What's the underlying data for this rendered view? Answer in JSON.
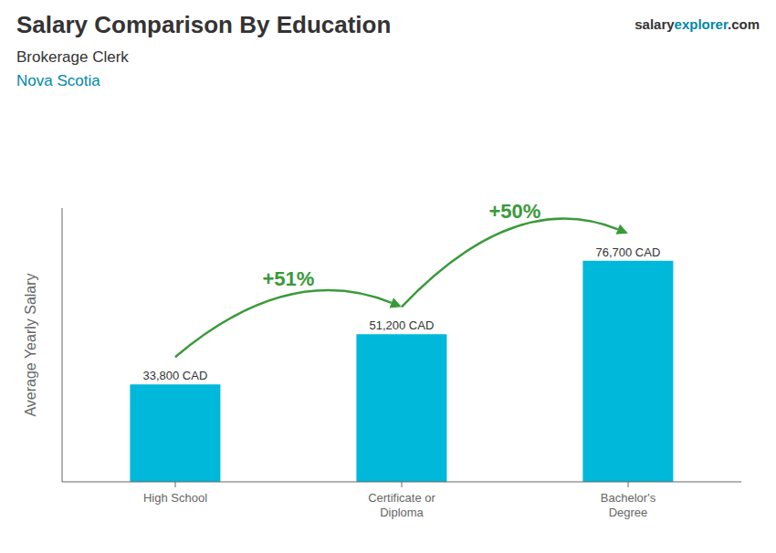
{
  "chart_data": {
    "type": "bar",
    "title": "Salary Comparison By Education",
    "subtitle": [
      "Brokerage Clerk",
      "Nova Scotia"
    ],
    "watermark": [
      "salary",
      "explorer",
      ".com"
    ],
    "ylabel": "Average Yearly Salary",
    "categories": [
      "High School",
      "Certificate or\nDiploma",
      "Bachelor's\nDegree"
    ],
    "values": [
      33800,
      51200,
      76700
    ],
    "value_labels": [
      "33,800 CAD",
      "51,200 CAD",
      "76,700 CAD"
    ],
    "data_labels": true,
    "annotations": [
      "+51%",
      "+50%"
    ],
    "color": "#00b8d9",
    "ylim": [
      0,
      95000
    ],
    "yticks": [],
    "tick_labels": "x",
    "grid": false
  }
}
